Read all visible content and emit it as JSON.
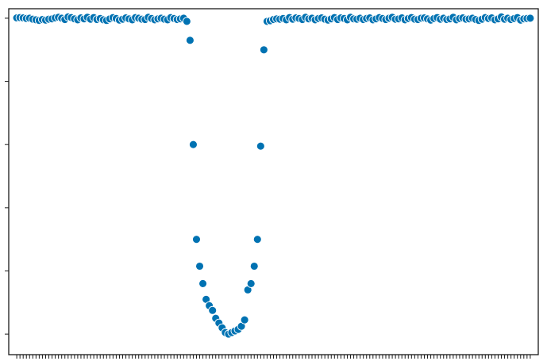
{
  "chart_data": {
    "type": "scatter",
    "title": "",
    "xlabel": "",
    "ylabel": "",
    "xlim": [
      -2.5,
      162.5
    ],
    "ylim": [
      -0.065,
      1.03
    ],
    "grid": false,
    "legend": "none",
    "marker_color": "#0072b2",
    "marker_edge_color": "#ffffff",
    "y_tick_values": [
      0.0,
      0.2,
      0.4,
      0.6,
      0.8,
      1.0
    ],
    "x_tick_values": [
      0,
      1,
      2,
      3,
      4,
      5,
      6,
      7,
      8,
      9,
      10,
      11,
      12,
      13,
      14,
      15,
      16,
      17,
      18,
      19,
      20,
      21,
      22,
      23,
      24,
      25,
      26,
      27,
      28,
      29,
      30,
      31,
      32,
      33,
      34,
      35,
      36,
      37,
      38,
      39,
      40,
      41,
      42,
      43,
      44,
      45,
      46,
      47,
      48,
      49,
      50,
      51,
      52,
      53,
      54,
      55,
      56,
      57,
      58,
      59,
      60,
      61,
      62,
      63,
      64,
      65,
      66,
      67,
      68,
      69,
      70,
      71,
      72,
      73,
      74,
      75,
      76,
      77,
      78,
      79,
      80,
      81,
      82,
      83,
      84,
      85,
      86,
      87,
      88,
      89,
      90,
      91,
      92,
      93,
      94,
      95,
      96,
      97,
      98,
      99,
      100,
      101,
      102,
      103,
      104,
      105,
      106,
      107,
      108,
      109,
      110,
      111,
      112,
      113,
      114,
      115,
      116,
      117,
      118,
      119,
      120,
      121,
      122,
      123,
      124,
      125,
      126,
      127,
      128,
      129,
      130,
      131,
      132,
      133,
      134,
      135,
      136,
      137,
      138,
      139,
      140,
      141,
      142,
      143,
      144,
      145,
      146,
      147,
      148,
      149,
      150,
      151,
      152,
      153,
      154,
      155,
      156,
      157,
      158,
      159,
      160
    ],
    "y": [
      1.001,
      1.002,
      1.001,
      0.999,
      1.0,
      0.997,
      0.995,
      0.993,
      0.996,
      0.994,
      0.997,
      0.998,
      1.001,
      1.003,
      1.0,
      0.996,
      1.004,
      1.002,
      0.998,
      0.995,
      1.001,
      0.998,
      1.003,
      0.997,
      1.002,
      0.996,
      0.999,
      0.995,
      0.993,
      0.998,
      1.002,
      0.999,
      0.994,
      0.997,
      1.001,
      0.998,
      0.995,
      1.002,
      1.0,
      0.997,
      0.996,
      1.003,
      0.999,
      0.995,
      0.998,
      1.0,
      0.997,
      0.995,
      1.002,
      0.999,
      0.996,
      0.998,
      1.0,
      0.99,
      0.93,
      0.6,
      0.3,
      0.215,
      0.16,
      0.11,
      0.09,
      0.075,
      0.05,
      0.035,
      0.02,
      0.005,
      0.0,
      0.005,
      0.01,
      0.015,
      0.025,
      0.045,
      0.14,
      0.16,
      0.215,
      0.3,
      0.595,
      0.9,
      0.99,
      0.992,
      0.996,
      0.998,
      0.997,
      0.999,
      0.995,
      1.002,
      0.997,
      1.001,
      0.999,
      0.996,
      1.003,
      0.998,
      1.0,
      0.995,
      0.999,
      1.001,
      0.997,
      0.994,
      0.998,
      1.002,
      0.996,
      1.001,
      0.999,
      0.995,
      1.003,
      0.998,
      0.997,
      1.0,
      0.996,
      0.999,
      1.001,
      0.995,
      0.998,
      1.002,
      0.999,
      0.996,
      1.0,
      1.003,
      0.997,
      0.998,
      1.001,
      0.995,
      0.999,
      1.002,
      0.997,
      0.996,
      1.0,
      1.001,
      0.998,
      0.994,
      0.999,
      1.002,
      0.997,
      1.0,
      0.996,
      0.998,
      1.003,
      0.995,
      0.999,
      1.001,
      0.997,
      0.998,
      1.0,
      0.996,
      0.993,
      0.997,
      1.002,
      0.999,
      1.001,
      0.995,
      0.998,
      1.004,
      0.997,
      1.0,
      0.996,
      0.999,
      1.002,
      0.994,
      0.998,
      0.999,
      1.0
    ]
  }
}
